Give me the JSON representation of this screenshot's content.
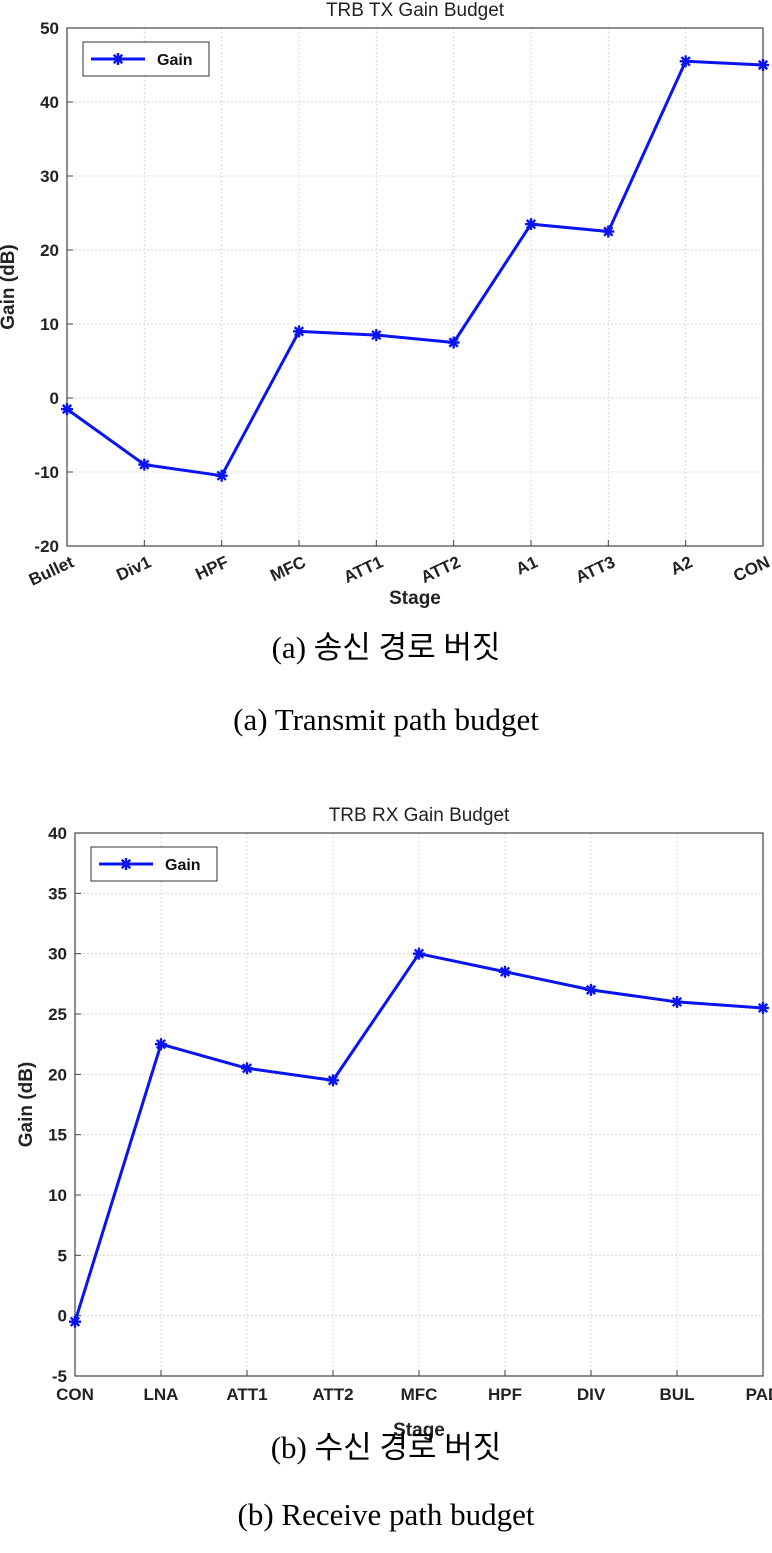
{
  "chart_data": [
    {
      "type": "line",
      "title": "TRB TX Gain Budget",
      "xlabel": "Stage",
      "ylabel": "Gain (dB)",
      "categories": [
        "Bullet",
        "Div1",
        "HPF",
        "MFC",
        "ATT1",
        "ATT2",
        "A1",
        "ATT3",
        "A2",
        "CON"
      ],
      "series": [
        {
          "name": "Gain",
          "values": [
            -1.5,
            -9,
            -10.5,
            9,
            8.5,
            7.5,
            23.5,
            22.5,
            45.5,
            45
          ]
        }
      ],
      "ylim": [
        -20,
        50
      ],
      "yticks": [
        -20,
        -10,
        0,
        10,
        20,
        30,
        40,
        50
      ],
      "grid": true,
      "legend": "top-left",
      "tick_rotation": "angled"
    },
    {
      "type": "line",
      "title": "TRB RX Gain Budget",
      "xlabel": "Stage",
      "ylabel": "Gain (dB)",
      "categories": [
        "CON",
        "LNA",
        "ATT1",
        "ATT2",
        "MFC",
        "HPF",
        "DIV",
        "BUL",
        "PAD"
      ],
      "series": [
        {
          "name": "Gain",
          "values": [
            -0.5,
            22.5,
            20.5,
            19.5,
            30,
            28.5,
            27,
            26,
            25.5
          ]
        }
      ],
      "ylim": [
        -5,
        40
      ],
      "yticks": [
        -5,
        0,
        5,
        10,
        15,
        20,
        25,
        30,
        35,
        40
      ],
      "grid": true,
      "legend": "top-left",
      "tick_rotation": "none"
    }
  ],
  "captions": [
    {
      "korean": "(a) 송신 경로 버짓",
      "english": "(a)  Transmit  path  budget"
    },
    {
      "korean": "(b) 수신 경로 버짓",
      "english": "(b)  Receive  path  budget"
    }
  ],
  "colors": {
    "line": "#0a14f0",
    "grid": "#d8d8d8",
    "axis": "#444444"
  }
}
